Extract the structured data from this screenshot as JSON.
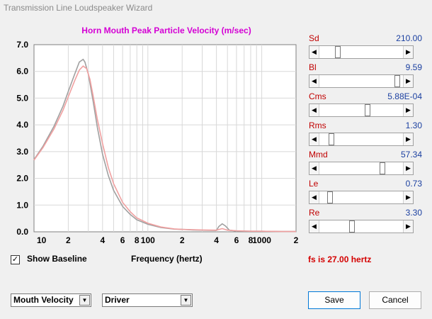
{
  "window": {
    "title": "Transmission Line Loudspeaker Wizard"
  },
  "chart_data": {
    "type": "line",
    "title": "Horn Mouth Peak Particle Velocity (m/sec)",
    "xlabel": "Frequency (hertz)",
    "ylabel": "",
    "xscale": "log",
    "xlim": [
      10,
      2000
    ],
    "ylim": [
      0,
      7
    ],
    "yticks": [
      "0.0",
      "1.0",
      "2.0",
      "3.0",
      "4.0",
      "5.0",
      "6.0",
      "7.0"
    ],
    "xticks": [
      "10",
      "2",
      "4",
      "6",
      "8",
      "100",
      "2",
      "4",
      "6",
      "8",
      "1000",
      "2"
    ],
    "grid": true,
    "series": [
      {
        "color": "#a0a0a0",
        "x": [
          10,
          12,
          15,
          18,
          20,
          23,
          25,
          27,
          28,
          30,
          33,
          36,
          40,
          45,
          50,
          60,
          70,
          80,
          100,
          130,
          170,
          200,
          250,
          300,
          400,
          420,
          450,
          480,
          520,
          600,
          800,
          1000,
          1500,
          2000
        ],
        "y": [
          2.7,
          3.2,
          3.95,
          4.7,
          5.25,
          5.95,
          6.35,
          6.45,
          6.35,
          5.9,
          4.9,
          3.9,
          2.9,
          2.1,
          1.55,
          0.95,
          0.65,
          0.45,
          0.28,
          0.16,
          0.1,
          0.09,
          0.07,
          0.06,
          0.05,
          0.2,
          0.3,
          0.22,
          0.06,
          0.03,
          0.02,
          0.02,
          0.01,
          0.01
        ]
      },
      {
        "color": "#f0a0a0",
        "x": [
          10,
          12,
          15,
          18,
          20,
          23,
          25,
          27,
          29,
          31,
          33,
          36,
          40,
          45,
          50,
          60,
          70,
          80,
          100,
          130,
          170,
          200,
          250,
          300,
          400,
          450,
          500,
          600,
          800,
          1000,
          1500,
          2000
        ],
        "y": [
          2.68,
          3.15,
          3.85,
          4.55,
          5.05,
          5.7,
          6.05,
          6.2,
          6.1,
          5.7,
          5.1,
          4.2,
          3.3,
          2.4,
          1.8,
          1.1,
          0.75,
          0.52,
          0.32,
          0.18,
          0.11,
          0.09,
          0.08,
          0.07,
          0.06,
          0.12,
          0.06,
          0.04,
          0.02,
          0.02,
          0.01,
          0.01
        ]
      }
    ]
  },
  "parameters": [
    {
      "label": "Sd",
      "value": "210.00",
      "level": 0.2
    },
    {
      "label": "Bl",
      "value": "9.59",
      "level": 0.96
    },
    {
      "label": "Cms",
      "value": "5.88E-04",
      "level": 0.58
    },
    {
      "label": "Rms",
      "value": "1.30",
      "level": 0.12
    },
    {
      "label": "Mmd",
      "value": "57.34",
      "level": 0.77
    },
    {
      "label": "Le",
      "value": "0.73",
      "level": 0.1
    },
    {
      "label": "Re",
      "value": "3.30",
      "level": 0.38
    }
  ],
  "show_baseline": {
    "label": "Show Baseline",
    "checked": true,
    "check_glyph": "✓"
  },
  "fs_text": "fs is 27.00 hertz",
  "plot_select": {
    "value": "Mouth Velocity"
  },
  "source_select": {
    "value": "Driver"
  },
  "buttons": {
    "save": "Save",
    "cancel": "Cancel"
  },
  "icons": {
    "left_arrow": "◀",
    "right_arrow": "▶",
    "dropdown": "▼"
  }
}
